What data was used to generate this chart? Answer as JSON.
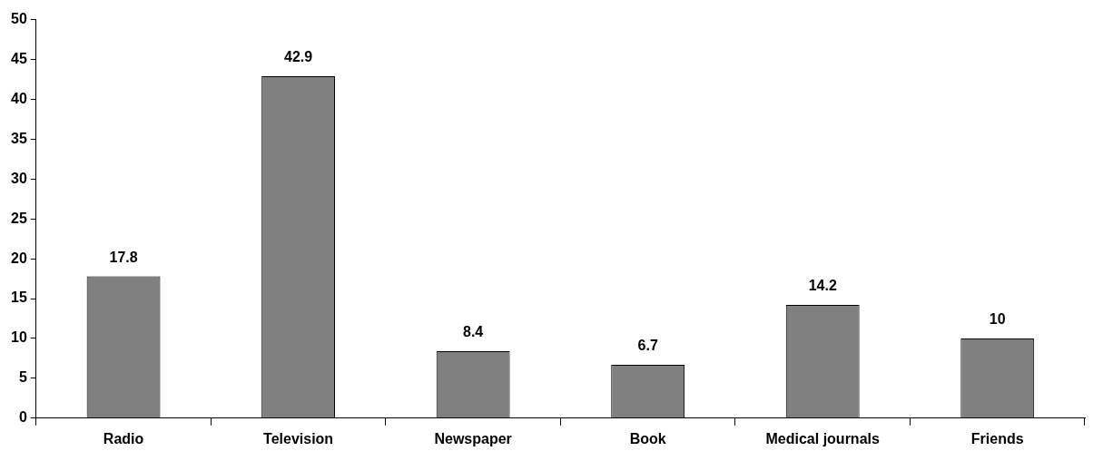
{
  "chart_data": {
    "type": "bar",
    "categories": [
      "Radio",
      "Television",
      "Newspaper",
      "Book",
      "Medical journals",
      "Friends"
    ],
    "values": [
      17.8,
      42.9,
      8.4,
      6.7,
      14.2,
      10
    ],
    "color": "#808080",
    "ylim": [
      0,
      50
    ],
    "yticks": [
      0,
      5,
      10,
      15,
      20,
      25,
      30,
      35,
      40,
      45,
      50
    ],
    "grid": false,
    "data_labels": true
  }
}
